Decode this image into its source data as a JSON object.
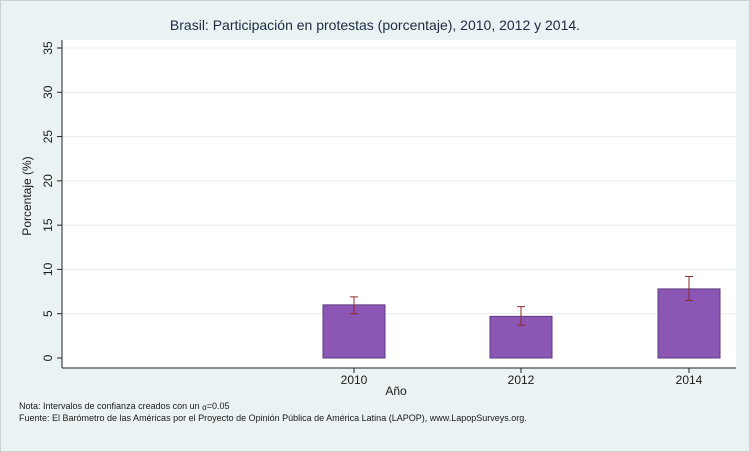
{
  "chart_data": {
    "type": "bar",
    "title": "Brasil: Participación en protestas (porcentaje), 2010, 2012 y 2014.",
    "xlabel": "Año",
    "ylabel": "Porcentaje (%)",
    "ylim": [
      0,
      35
    ],
    "yticks": [
      0,
      5,
      10,
      15,
      20,
      25,
      30,
      35
    ],
    "categories": [
      "2010",
      "2012",
      "2014"
    ],
    "values": [
      6.0,
      4.7,
      7.8
    ],
    "ci_low": [
      5.0,
      3.7,
      6.5
    ],
    "ci_high": [
      6.9,
      5.8,
      9.2
    ],
    "grid": true,
    "colors": {
      "bar": "#8c57b4",
      "bar_edge": "#5d3a80",
      "errorbar": "#8b2a2a",
      "plot_bg": "#ffffff",
      "page_bg": "#eaf2f3",
      "grid": "#e6ecee"
    }
  },
  "notes": {
    "nota_prefix": "Nota: Intervalos de confianza creados con un ",
    "alpha_symbol": "α",
    "nota_suffix": "=0.05",
    "fuente": "Fuente: El Barómetro de las Américas por el Proyecto de Opinión Pública de América Latina (LAPOP), www.LapopSurveys.org."
  }
}
